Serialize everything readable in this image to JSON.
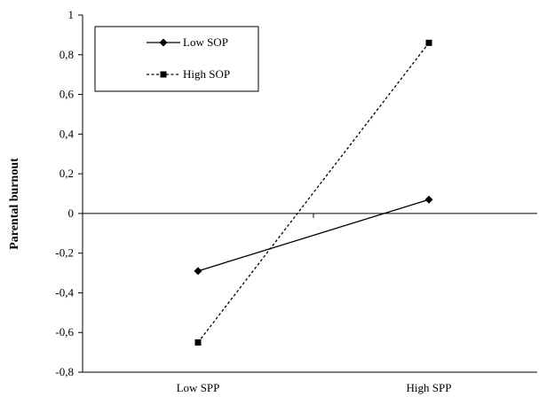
{
  "chart_data": {
    "type": "line",
    "categories": [
      "Low SPP",
      "High SPP"
    ],
    "series": [
      {
        "name": "Low SOP",
        "values": [
          -0.29,
          0.07
        ],
        "line_style": "solid",
        "marker": "diamond",
        "color": "#000000"
      },
      {
        "name": "High SOP",
        "values": [
          -0.65,
          0.86
        ],
        "line_style": "dashed",
        "marker": "square",
        "color": "#000000"
      }
    ],
    "title": "",
    "xlabel": "",
    "ylabel": "Parental burnout",
    "ylim": [
      -0.8,
      1
    ],
    "yticks": [
      {
        "value": 1,
        "label": "1"
      },
      {
        "value": 0.8,
        "label": "0,8"
      },
      {
        "value": 0.6,
        "label": "0,6"
      },
      {
        "value": 0.4,
        "label": "0,4"
      },
      {
        "value": 0.2,
        "label": "0,2"
      },
      {
        "value": 0,
        "label": "0"
      },
      {
        "value": -0.2,
        "label": "-0,2"
      },
      {
        "value": -0.4,
        "label": "-0,4"
      },
      {
        "value": -0.6,
        "label": "-0,6"
      },
      {
        "value": -0.8,
        "label": "-0,8"
      }
    ],
    "grid": false,
    "legend_position": "top-left"
  }
}
